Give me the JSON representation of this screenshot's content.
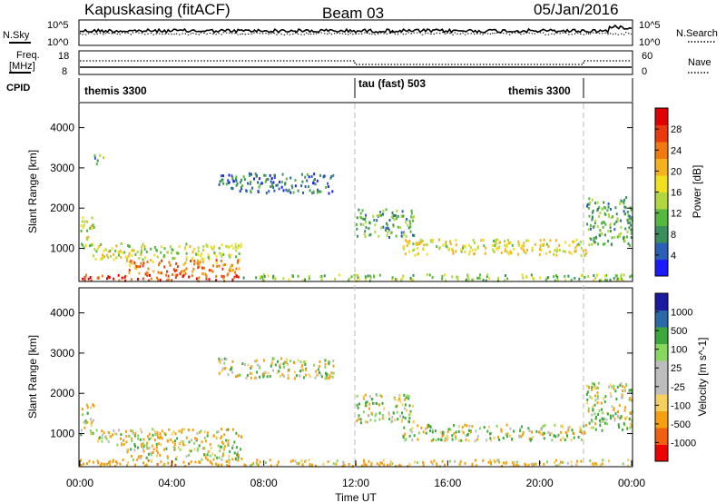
{
  "header": {
    "station": "Kapuskasing (fitACF)",
    "beam": "Beam 03",
    "date": "05/Jan/2016"
  },
  "nsky_panel": {
    "label": "N.Sky",
    "right_label": "N.Search",
    "y_ticks": [
      "10^5",
      "10^0"
    ],
    "right_ticks": [
      "10^5",
      "10^0"
    ]
  },
  "freq_panel": {
    "label_line1": "Freq.",
    "label_line2": "[MHz]",
    "right_label": "Nave",
    "y_ticks": [
      "18",
      "8"
    ],
    "right_ticks": [
      "60",
      "0"
    ]
  },
  "cpid_panel": {
    "label": "CPID",
    "modes": [
      "themis 3300",
      "tau (fast) 503",
      "themis 3300"
    ]
  },
  "colors": {
    "power_scale": [
      "#1a1aff",
      "#2a5fb5",
      "#3a8f5a",
      "#57b83f",
      "#b0d640",
      "#f0e020",
      "#f5b21c",
      "#f07a10",
      "#e83a0c",
      "#e00000"
    ],
    "velocity_scale": [
      "#ee0000",
      "#f06010",
      "#f5a010",
      "#f5d060",
      "#bdbdbd",
      "#bdbdbd",
      "#88d860",
      "#3ca83c",
      "#2a6aa8",
      "#1a1aa0"
    ],
    "dashed_line": "#bbbbbb"
  },
  "chart_data": [
    {
      "type": "heatmap",
      "name": "power",
      "ylabel": "Slant Range [km]",
      "y_ticks": [
        "1000",
        "2000",
        "3000",
        "4000"
      ],
      "ylim": [
        200,
        4600
      ],
      "colorbar_label": "Power [dB]",
      "colorbar_ticks": [
        "4",
        "8",
        "12",
        "16",
        "20",
        "24",
        "28"
      ],
      "clim": [
        0,
        30
      ],
      "regions": [
        {
          "t": [
            0.0,
            7.0
          ],
          "r": [
            220,
            380
          ],
          "v": 26
        },
        {
          "t": [
            2.0,
            7.0
          ],
          "r": [
            380,
            750
          ],
          "v": 22
        },
        {
          "t": [
            0.5,
            7.0
          ],
          "r": [
            750,
            1150
          ],
          "v": 14
        },
        {
          "t": [
            0.0,
            0.6
          ],
          "r": [
            1000,
            1800
          ],
          "v": 14
        },
        {
          "t": [
            0.6,
            1.0
          ],
          "r": [
            3100,
            3350
          ],
          "v": 8
        },
        {
          "t": [
            6.0,
            11.0
          ],
          "r": [
            2400,
            2900
          ],
          "v": 6
        },
        {
          "t": [
            12.0,
            14.5
          ],
          "r": [
            1300,
            2000
          ],
          "v": 10
        },
        {
          "t": [
            14.0,
            22.0
          ],
          "r": [
            850,
            1250
          ],
          "v": 16
        },
        {
          "t": [
            22.0,
            24.0
          ],
          "r": [
            1100,
            2300
          ],
          "v": 10
        },
        {
          "t": [
            7.0,
            24.0
          ],
          "r": [
            220,
            380
          ],
          "v": 12
        }
      ]
    },
    {
      "type": "heatmap",
      "name": "velocity",
      "ylabel": "Slant Range [km]",
      "y_ticks": [
        "1000",
        "2000",
        "3000",
        "4000"
      ],
      "ylim": [
        200,
        4600
      ],
      "colorbar_label": "Velocity [m s^-1]",
      "colorbar_ticks": [
        "-1000",
        "-500",
        "-100",
        "-25",
        "25",
        "100",
        "500",
        "1000"
      ],
      "clim": [
        -1000,
        1000
      ],
      "xlabel": "Time UT",
      "x_ticks": [
        "00:00",
        "04:00",
        "08:00",
        "12:00",
        "16:00",
        "20:00",
        "00:00"
      ],
      "xlim": [
        0,
        24
      ],
      "regions": [
        {
          "t": [
            0.0,
            7.0
          ],
          "r": [
            220,
            380
          ],
          "v": -300
        },
        {
          "t": [
            2.0,
            7.0
          ],
          "r": [
            380,
            750
          ],
          "v": 0
        },
        {
          "t": [
            0.5,
            7.0
          ],
          "r": [
            750,
            1150
          ],
          "v": -80
        },
        {
          "t": [
            0.0,
            0.6
          ],
          "r": [
            1000,
            1800
          ],
          "v": -60
        },
        {
          "t": [
            6.0,
            11.0
          ],
          "r": [
            2400,
            2900
          ],
          "v": 0
        },
        {
          "t": [
            12.0,
            14.5
          ],
          "r": [
            1300,
            2000
          ],
          "v": 40
        },
        {
          "t": [
            14.0,
            22.0
          ],
          "r": [
            850,
            1250
          ],
          "v": 0
        },
        {
          "t": [
            22.0,
            24.0
          ],
          "r": [
            1100,
            2300
          ],
          "v": 60
        },
        {
          "t": [
            7.0,
            24.0
          ],
          "r": [
            220,
            380
          ],
          "v": -150
        }
      ]
    }
  ]
}
